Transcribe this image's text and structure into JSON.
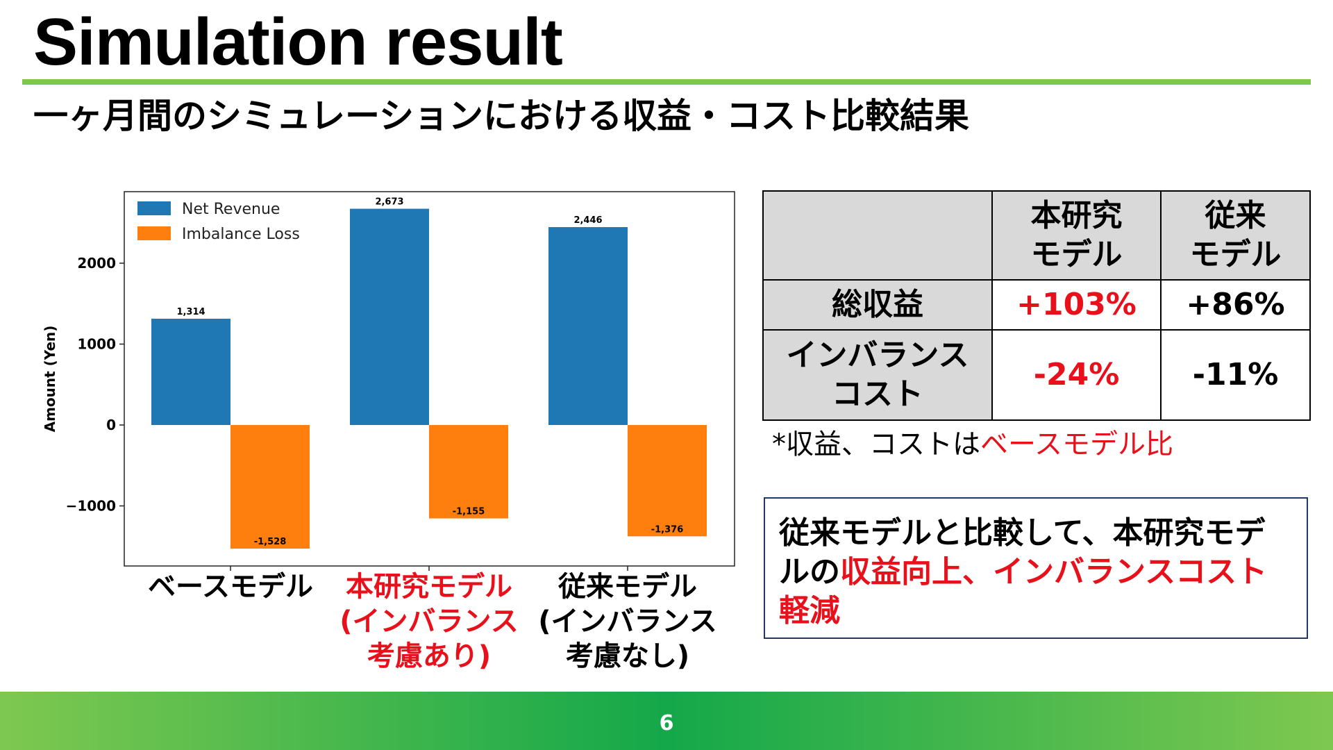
{
  "slide": {
    "title": "Simulation result",
    "subtitle": "一ヶ月間のシミュレーションにおける収益・コスト比較結果",
    "page_number": "6"
  },
  "colors": {
    "net_revenue": "#1f77b4",
    "imbalance_loss": "#ff7f0e",
    "highlight_red": "#e8101a",
    "accent_green": "#7ec850",
    "footer_green": "#14a84a"
  },
  "chart_data": {
    "type": "bar",
    "categories": [
      "ベースモデル",
      "本研究モデル\n(インバランス\n考慮あり)",
      "従来モデル\n(インバランス\n考慮なし)"
    ],
    "category_highlight": [
      false,
      true,
      false
    ],
    "series": [
      {
        "name": "Net Revenue",
        "color": "#1f77b4",
        "values": [
          1314,
          2673,
          2446
        ],
        "labels": [
          "1,314",
          "2,673",
          "2,446"
        ]
      },
      {
        "name": "Imbalance Loss",
        "color": "#ff7f0e",
        "values": [
          -1528,
          -1155,
          -1376
        ],
        "labels": [
          "-1,528",
          "-1,155",
          "-1,376"
        ]
      }
    ],
    "ylabel": "Amount (Yen)",
    "xlabel": "",
    "ylim": [
      -1740,
      2900
    ],
    "yticks": [
      2000,
      1000,
      0,
      -1000
    ],
    "ytick_labels": [
      "2000",
      "1000",
      "0",
      "−1000"
    ],
    "grid": false,
    "legend_position": "top-left"
  },
  "table": {
    "headers": [
      "",
      "本研究\nモデル",
      "従来\nモデル"
    ],
    "rows": [
      {
        "label": "総収益",
        "study": "+103%",
        "conventional": "+86%"
      },
      {
        "label": "インバランス\nコスト",
        "study": "-24%",
        "conventional": "-11%"
      }
    ]
  },
  "footnote": {
    "prefix": "*収益、コストは",
    "highlight": "ベースモデル比"
  },
  "conclusion": {
    "part1": "従来モデルと比較して、本研究モデルの",
    "highlight": "収益向上、インバランスコスト軽減"
  }
}
